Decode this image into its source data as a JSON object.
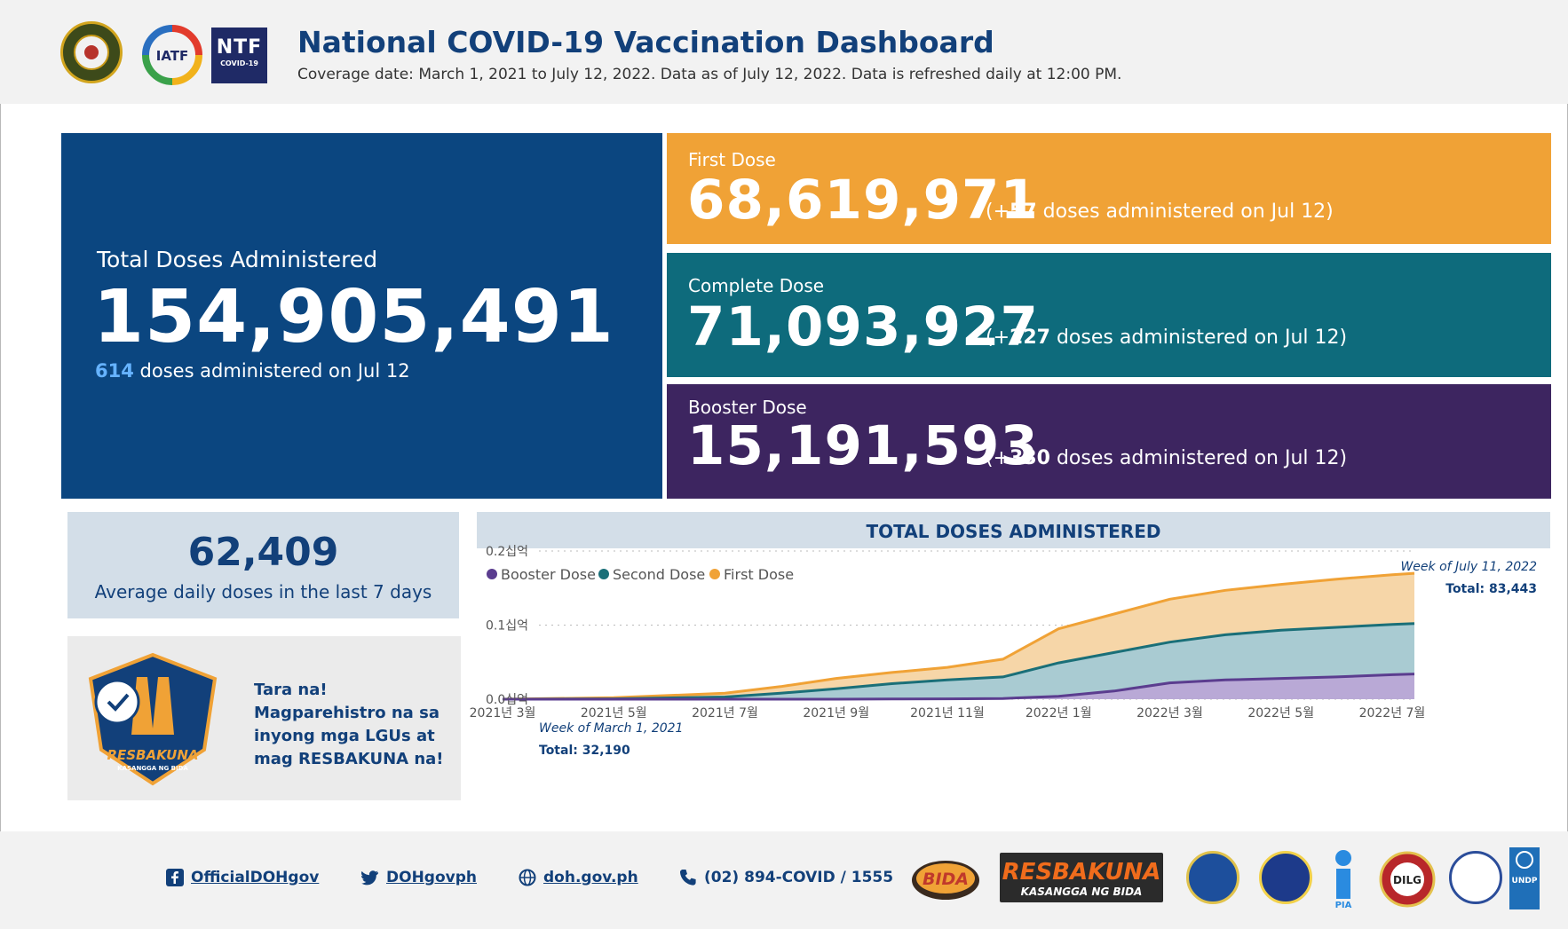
{
  "header": {
    "title": "National COVID-19 Vaccination Dashboard",
    "subtitle": "Coverage date: March 1, 2021 to July 12, 2022. Data as of July 12, 2022. Data is refreshed daily at 12:00 PM.",
    "logos": {
      "iatf": "IATF",
      "ntf": "NTF",
      "ntf_sub": "COVID-19"
    }
  },
  "totals": {
    "label": "Total Doses Administered",
    "value": "154,905,491",
    "daily_count": "614",
    "daily_text": "doses administered on Jul 12"
  },
  "doses": [
    {
      "label": "First Dose",
      "value": "68,619,971",
      "inc_prefix": "(+",
      "inc": "57",
      "inc_suffix": "doses administered on Jul 12)",
      "color": "#f0a236"
    },
    {
      "label": "Complete Dose",
      "value": "71,093,927",
      "inc_prefix": "(+",
      "inc": "227",
      "inc_suffix": "doses administered on Jul 12)",
      "color": "#0e6b7c"
    },
    {
      "label": "Booster Dose",
      "value": "15,191,593",
      "inc_prefix": "(+",
      "inc": "330",
      "inc_suffix": "doses administered on Jul 12)",
      "color": "#3d2560"
    }
  ],
  "average": {
    "value": "62,409",
    "caption": "Average daily doses in the last 7 days"
  },
  "promo": {
    "text": "Tara na! Magparehistro na sa inyong mga LGUs at mag RESBAKUNA na!",
    "badge_text": "RESBAKUNA",
    "badge_sub": "KASANGGA NG BIDA"
  },
  "chart_data": {
    "type": "area",
    "title": "TOTAL DOSES ADMINISTERED",
    "legend": [
      "Booster Dose",
      "Second Dose",
      "First Dose"
    ],
    "colors": {
      "booster_line": "#5b3d8f",
      "booster_fill": "#b9a9d6",
      "second_line": "#1a6f78",
      "second_fill": "#a9cbd2",
      "first_line": "#f0a236",
      "first_fill": "#f6d6a8"
    },
    "y_ticks": [
      "0.2십억",
      "0.1십억",
      "0.0십억"
    ],
    "y_range": [
      0,
      0.2
    ],
    "x_ticks": [
      "2021년 3월",
      "2021년 5월",
      "2021년 7월",
      "2021년 9월",
      "2021년 11월",
      "2022년 1월",
      "2022년 3월",
      "2022년 5월",
      "2022년 7월"
    ],
    "x_months": [
      0,
      2,
      4,
      6,
      8,
      10,
      12,
      14,
      16
    ],
    "x_range_months": [
      0,
      16.4
    ],
    "series": [
      {
        "name": "First Dose",
        "months": [
          0,
          2,
          4,
          5,
          6,
          7,
          8,
          9,
          10,
          11,
          12,
          13,
          14,
          15,
          16,
          16.4
        ],
        "values": [
          0,
          0.002,
          0.008,
          0.017,
          0.028,
          0.036,
          0.043,
          0.054,
          0.095,
          0.115,
          0.135,
          0.147,
          0.155,
          0.162,
          0.168,
          0.17
        ]
      },
      {
        "name": "Second Dose",
        "months": [
          0,
          2,
          4,
          5,
          6,
          7,
          8,
          9,
          10,
          11,
          12,
          13,
          14,
          15,
          16,
          16.4
        ],
        "values": [
          0,
          0.0005,
          0.003,
          0.008,
          0.014,
          0.021,
          0.026,
          0.03,
          0.049,
          0.063,
          0.077,
          0.087,
          0.093,
          0.097,
          0.101,
          0.102
        ]
      },
      {
        "name": "Booster Dose",
        "months": [
          0,
          2,
          4,
          5,
          6,
          7,
          8,
          9,
          10,
          11,
          12,
          13,
          14,
          15,
          16,
          16.4
        ],
        "values": [
          0,
          0,
          0,
          0,
          0,
          0.0002,
          0.0005,
          0.001,
          0.004,
          0.011,
          0.022,
          0.026,
          0.028,
          0.03,
          0.033,
          0.034
        ]
      }
    ],
    "annotations": [
      {
        "line1": "Week of March 1, 2021",
        "line2": "Total: 32,190"
      },
      {
        "line1": "Week of July 11, 2022",
        "line2": "Total: 83,443"
      }
    ]
  },
  "footer": {
    "facebook": "OfficialDOHgov",
    "twitter": "DOHgovph",
    "website": "doh.gov.ph",
    "phone": "(02) 894-COVID / 1555",
    "partners": [
      "BIDA",
      "RESBAKUNA",
      "KASANGGA NG BIDA",
      "PIA",
      "DILG",
      "UNDP"
    ]
  }
}
